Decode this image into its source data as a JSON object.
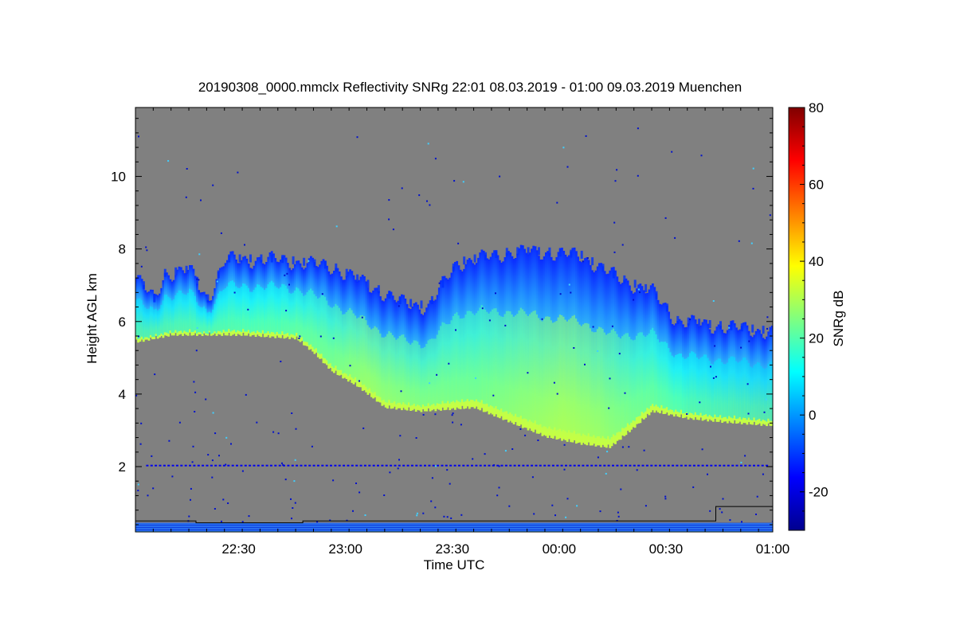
{
  "chart_data": {
    "type": "heatmap",
    "title": "20190308_0000.mmclx Reflectivity SNRg   22:01 08.03.2019 - 01:00 09.03.2019 Muenchen",
    "xlabel": "Time UTC",
    "ylabel": "Height AGL km",
    "colorbar_label": "SNRg dB",
    "x_tick_labels": [
      "22:30",
      "23:00",
      "23:30",
      "00:00",
      "00:30",
      "01:00"
    ],
    "x_tick_minutes": [
      29,
      59,
      89,
      119,
      149,
      179
    ],
    "xlim_minutes": [
      0,
      179
    ],
    "y_ticks": [
      2,
      4,
      6,
      8,
      10
    ],
    "ylim": [
      0.2,
      11.9
    ],
    "colorbar_ticks": [
      -20,
      0,
      20,
      40,
      60,
      80
    ],
    "colorbar_range": [
      -30,
      80
    ],
    "colormap": "jet",
    "background_color": "#808080",
    "cloud_top_km": [
      [
        0,
        7.2
      ],
      [
        5,
        6.6
      ],
      [
        8,
        7.3
      ],
      [
        15,
        7.4
      ],
      [
        20,
        6.6
      ],
      [
        25,
        7.7
      ],
      [
        40,
        7.7
      ],
      [
        55,
        7.5
      ],
      [
        65,
        7.0
      ],
      [
        75,
        6.5
      ],
      [
        82,
        6.4
      ],
      [
        90,
        7.6
      ],
      [
        105,
        7.9
      ],
      [
        115,
        7.9
      ],
      [
        125,
        7.8
      ],
      [
        135,
        7.2
      ],
      [
        145,
        6.8
      ],
      [
        152,
        6.0
      ],
      [
        160,
        5.9
      ],
      [
        170,
        5.8
      ],
      [
        179,
        5.7
      ]
    ],
    "cloud_base_km": [
      [
        0,
        5.5
      ],
      [
        10,
        5.7
      ],
      [
        30,
        5.7
      ],
      [
        45,
        5.6
      ],
      [
        50,
        5.2
      ],
      [
        55,
        4.7
      ],
      [
        62,
        4.3
      ],
      [
        70,
        3.7
      ],
      [
        80,
        3.6
      ],
      [
        95,
        3.7
      ],
      [
        105,
        3.3
      ],
      [
        115,
        2.9
      ],
      [
        125,
        2.7
      ],
      [
        133,
        2.6
      ],
      [
        138,
        3.0
      ],
      [
        145,
        3.6
      ],
      [
        155,
        3.4
      ],
      [
        165,
        3.3
      ],
      [
        179,
        3.2
      ]
    ],
    "core_snr_db": [
      [
        0,
        8
      ],
      [
        20,
        10
      ],
      [
        40,
        12
      ],
      [
        55,
        18
      ],
      [
        65,
        25
      ],
      [
        80,
        20
      ],
      [
        95,
        18
      ],
      [
        110,
        24
      ],
      [
        120,
        28
      ],
      [
        130,
        25
      ],
      [
        140,
        18
      ],
      [
        155,
        10
      ],
      [
        179,
        6
      ]
    ]
  }
}
